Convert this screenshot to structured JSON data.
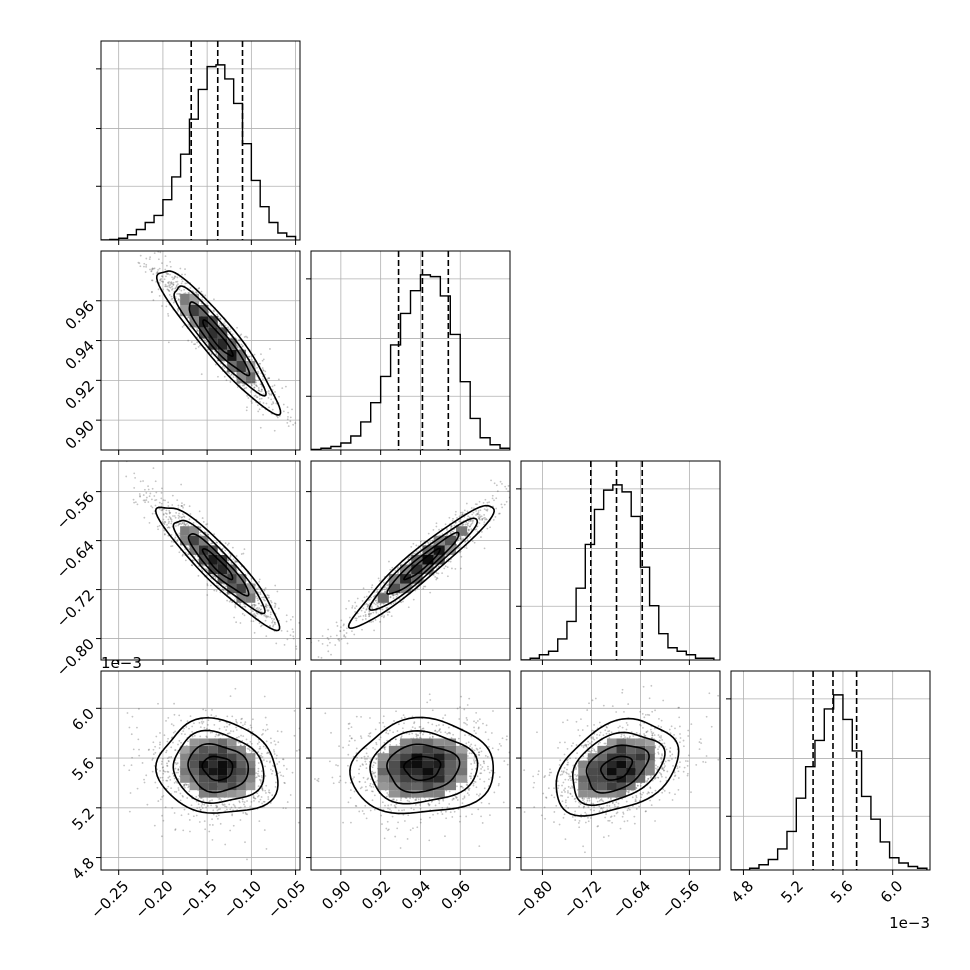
{
  "chart_data": {
    "type": "corner",
    "title": "",
    "parameters": [
      {
        "range": [
          -0.27,
          -0.045
        ],
        "ticks": [
          -0.25,
          -0.2,
          -0.15,
          -0.1,
          -0.05
        ],
        "tick_labels": [
          "−0.25",
          "−0.20",
          "−0.15",
          "−0.10",
          "−0.05"
        ],
        "quantiles": [
          -0.168,
          -0.138,
          -0.11
        ],
        "offset_label": "",
        "hist_bin_edges": [
          -0.27,
          -0.26,
          -0.25,
          -0.24,
          -0.23,
          -0.22,
          -0.21,
          -0.2,
          -0.19,
          -0.18,
          -0.17,
          -0.16,
          -0.15,
          -0.14,
          -0.13,
          -0.12,
          -0.11,
          -0.1,
          -0.09,
          -0.08,
          -0.07,
          -0.06,
          -0.05
        ],
        "hist_counts": [
          0.0,
          0.003,
          0.01,
          0.03,
          0.06,
          0.1,
          0.14,
          0.23,
          0.36,
          0.49,
          0.69,
          0.86,
          0.99,
          1.0,
          0.92,
          0.78,
          0.55,
          0.34,
          0.19,
          0.1,
          0.04,
          0.02
        ]
      },
      {
        "range": [
          0.885,
          0.985
        ],
        "ticks": [
          0.9,
          0.92,
          0.94,
          0.96
        ],
        "tick_labels": [
          "0.90",
          "0.92",
          "0.94",
          "0.96"
        ],
        "quantiles": [
          0.929,
          0.941,
          0.954
        ],
        "offset_label": "",
        "hist_bin_edges": [
          0.885,
          0.89,
          0.895,
          0.9,
          0.905,
          0.91,
          0.915,
          0.92,
          0.925,
          0.93,
          0.935,
          0.94,
          0.945,
          0.95,
          0.955,
          0.96,
          0.965,
          0.97,
          0.975,
          0.98,
          0.985
        ],
        "hist_counts": [
          0.003,
          0.01,
          0.02,
          0.04,
          0.08,
          0.16,
          0.27,
          0.42,
          0.6,
          0.78,
          0.91,
          1.0,
          0.99,
          0.88,
          0.66,
          0.39,
          0.18,
          0.07,
          0.03,
          0.01
        ]
      },
      {
        "range": [
          -0.835,
          -0.51
        ],
        "ticks": [
          -0.8,
          -0.72,
          -0.64,
          -0.56
        ],
        "tick_labels": [
          "−0.80",
          "−0.72",
          "−0.64",
          "−0.56"
        ],
        "quantiles": [
          -0.721,
          -0.679,
          -0.637
        ],
        "offset_label": "",
        "hist_bin_edges": [
          -0.835,
          -0.82,
          -0.805,
          -0.79,
          -0.775,
          -0.76,
          -0.745,
          -0.73,
          -0.715,
          -0.7,
          -0.685,
          -0.67,
          -0.655,
          -0.64,
          -0.625,
          -0.61,
          -0.595,
          -0.58,
          -0.565,
          -0.55,
          -0.535,
          -0.52
        ],
        "hist_counts": [
          0.0,
          0.01,
          0.03,
          0.05,
          0.12,
          0.22,
          0.41,
          0.66,
          0.86,
          0.97,
          1.0,
          0.96,
          0.82,
          0.53,
          0.31,
          0.15,
          0.07,
          0.05,
          0.03,
          0.01,
          0.01
        ]
      },
      {
        "range": [
          4.7,
          6.3
        ],
        "ticks": [
          4.8,
          5.2,
          5.6,
          6.0
        ],
        "tick_labels": [
          "4.8",
          "5.2",
          "5.6",
          "6.0"
        ],
        "quantiles": [
          5.36,
          5.52,
          5.71
        ],
        "offset_label": "1e−3",
        "hist_bin_edges": [
          4.7,
          4.775,
          4.85,
          4.925,
          5.0,
          5.075,
          5.15,
          5.225,
          5.3,
          5.375,
          5.45,
          5.525,
          5.6,
          5.675,
          5.75,
          5.825,
          5.9,
          5.975,
          6.05,
          6.125,
          6.2,
          6.275
        ],
        "hist_counts": [
          0.0,
          0.0,
          0.01,
          0.03,
          0.06,
          0.12,
          0.22,
          0.41,
          0.59,
          0.74,
          0.92,
          1.0,
          0.86,
          0.68,
          0.42,
          0.29,
          0.16,
          0.07,
          0.04,
          0.02,
          0.01
        ]
      }
    ],
    "pairs": [
      {
        "row": 1,
        "col": 0,
        "mean": [
          -0.138,
          0.941
        ],
        "std": [
          0.034,
          0.018
        ],
        "corr": -0.93
      },
      {
        "row": 2,
        "col": 0,
        "mean": [
          -0.138,
          -0.679
        ],
        "std": [
          0.034,
          0.05
        ],
        "corr": -0.92
      },
      {
        "row": 2,
        "col": 1,
        "mean": [
          0.941,
          -0.679
        ],
        "std": [
          0.018,
          0.05
        ],
        "corr": 0.95
      },
      {
        "row": 3,
        "col": 0,
        "mean": [
          -0.138,
          5.52
        ],
        "std": [
          0.034,
          0.19
        ],
        "corr": -0.1
      },
      {
        "row": 3,
        "col": 1,
        "mean": [
          0.941,
          5.52
        ],
        "std": [
          0.018,
          0.19
        ],
        "corr": 0.05
      },
      {
        "row": 3,
        "col": 2,
        "mean": [
          -0.679,
          5.52
        ],
        "std": [
          0.05,
          0.19
        ],
        "corr": 0.35
      }
    ],
    "contour_levels": [
      0.5,
      1.0,
      1.5,
      2.0
    ],
    "scatter_points_per_panel": 1200,
    "grid": true,
    "legend": "none"
  }
}
